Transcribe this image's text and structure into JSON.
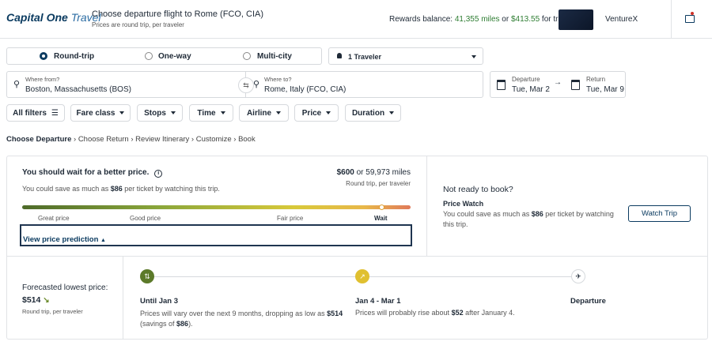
{
  "header": {
    "logo_brand": "Capital One",
    "logo_product": "Travel",
    "title": "Choose departure flight to Rome (FCO, CIA)",
    "subtitle": "Prices are round trip, per traveler",
    "rewards": [
      "Rewards balance: ",
      "41,355 miles",
      " or ",
      "$413.55",
      " for travel"
    ],
    "card_name": "VentureX"
  },
  "search": {
    "trip_types": [
      "Round-trip",
      "One-way",
      "Multi-city"
    ],
    "travelers": "1 Traveler",
    "from_label": "Where from?",
    "from_value": "Boston, Massachusetts (BOS)",
    "to_label": "Where to?",
    "to_value": "Rome, Italy (FCO, CIA)",
    "departure_label": "Departure",
    "departure_value": "Tue, Mar 2",
    "return_label": "Return",
    "return_value": "Tue, Mar 9"
  },
  "filters": [
    "All filters",
    "Fare class",
    "Stops",
    "Time",
    "Airline",
    "Price",
    "Duration"
  ],
  "breadcrumb": [
    "Choose Departure",
    "Choose Return",
    "Review Itinerary",
    "Customize",
    "Book"
  ],
  "prediction": {
    "headline": "You should wait for a better price.",
    "savings": [
      "You could save as much as ",
      "$86",
      " per ticket by watching this trip."
    ],
    "price": "$600",
    "miles": " or 59,973 miles",
    "price_note": "Round trip, per traveler",
    "scale_labels": [
      "Great price",
      "Good price",
      "Fair price",
      "Wait"
    ],
    "toggle": "View price prediction"
  },
  "watch": {
    "heading": "Not ready to book?",
    "title": "Price Watch",
    "text": [
      "You could save as much as ",
      "$86",
      " per ticket by watching this trip."
    ],
    "button": "Watch Trip"
  },
  "forecast": {
    "label": "Forecasted lowest price:",
    "price": "$514",
    "note": "Round trip, per traveler",
    "steps": [
      {
        "title": "Until Jan 3",
        "text": [
          "Prices will vary over the next 9 months, dropping as low as ",
          "$514",
          " (savings of ",
          "$86",
          ")."
        ]
      },
      {
        "title": "Jan 4 - Mar 1",
        "text": [
          "Prices will probably rise about ",
          "$52",
          " after January 4."
        ]
      },
      {
        "title": "Departure",
        "text": []
      }
    ]
  }
}
